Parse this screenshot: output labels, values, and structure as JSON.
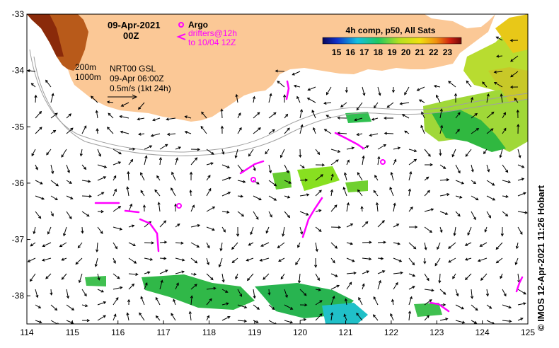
{
  "map": {
    "date": "09-Apr-2021",
    "time": "00Z",
    "legend_argo": "Argo",
    "legend_drifters_line1": "drifters@12h",
    "legend_drifters_line2": "to 10/04 12Z",
    "colorbar_title": "4h comp, p50, All Sats",
    "colorbar_ticks": [
      "15",
      "16",
      "17",
      "18",
      "19",
      "20",
      "21",
      "22",
      "23"
    ],
    "colorbar_range": [
      14,
      24
    ],
    "isobath_1": "200m",
    "isobath_2": "1000m",
    "model_label": "NRT00 GSL",
    "model_time": "09-Apr 06:00Z",
    "scale_label": "0.5m/s (1kt 24h)",
    "credit": "© IMOS 12-Apr-2021 11:26 Hobart",
    "x_ticks": [
      "114",
      "115",
      "116",
      "117",
      "118",
      "119",
      "120",
      "121",
      "122",
      "123",
      "124",
      "125"
    ],
    "y_ticks": [
      "-33",
      "-34",
      "-35",
      "-36",
      "-37",
      "-38"
    ],
    "lon_range": [
      114,
      125
    ],
    "lat_range": [
      -38.5,
      -33
    ],
    "colors": {
      "land": "#fbc896",
      "argo": "#ff00ff",
      "isobath": "#a0a0a0",
      "arrow": "#000000"
    }
  }
}
